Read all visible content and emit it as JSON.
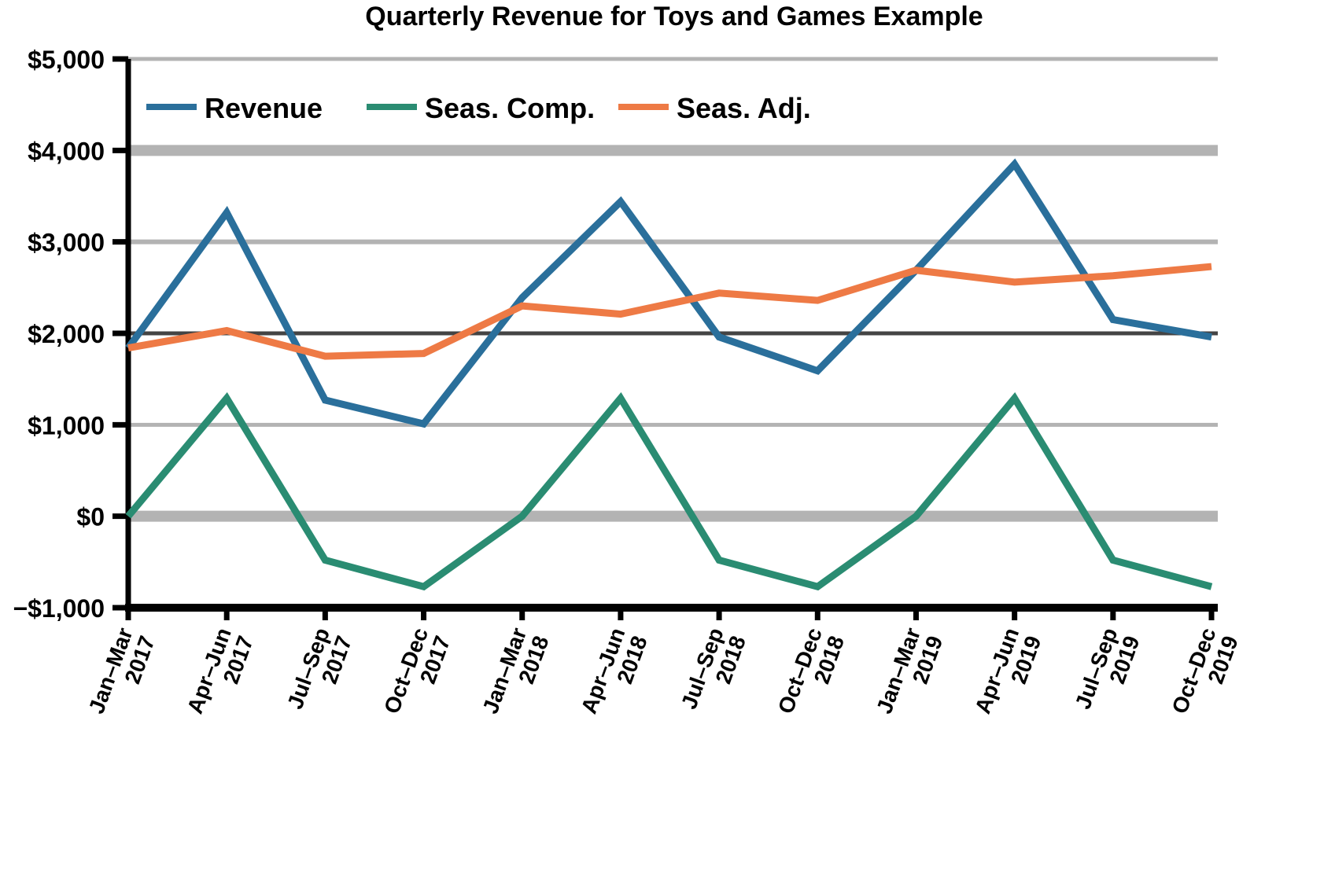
{
  "chart_data": {
    "type": "line",
    "title": "Quarterly Revenue for Toys and Games Example",
    "xlabel": "",
    "ylabel": "",
    "ylim": [
      -1000,
      5000
    ],
    "yticks": [
      -1000,
      0,
      1000,
      2000,
      3000,
      4000,
      5000
    ],
    "ytick_labels": [
      "−$1,000",
      "$0",
      "$1,000",
      "$2,000",
      "$3,000",
      "$4,000",
      "$5,000"
    ],
    "grid": true,
    "legend_position": "top-left inside",
    "categories": [
      "Jan–Mar 2017",
      "Apr–Jun 2017",
      "Jul–Sep 2017",
      "Oct–Dec 2017",
      "Jan–Mar 2018",
      "Apr–Jun 2018",
      "Jul–Sep 2018",
      "Oct–Dec 2018",
      "Jan–Mar 2019",
      "Apr–Jun 2019",
      "Jul–Sep 2019",
      "Oct–Dec 2019"
    ],
    "series": [
      {
        "name": "Revenue",
        "color": "#2a6f9b",
        "values": [
          1840,
          3320,
          1270,
          1010,
          2390,
          3440,
          1960,
          1590,
          2690,
          3850,
          2150,
          1960
        ]
      },
      {
        "name": "Seas. Comp.",
        "color": "#2a8c72",
        "values": [
          0,
          1290,
          -480,
          -770,
          0,
          1290,
          -480,
          -770,
          0,
          1290,
          -480,
          -770
        ]
      },
      {
        "name": "Seas. Adj.",
        "color": "#ee7a45",
        "values": [
          1840,
          2030,
          1750,
          1780,
          2300,
          2210,
          2440,
          2360,
          2690,
          2560,
          2630,
          2730
        ]
      }
    ]
  }
}
